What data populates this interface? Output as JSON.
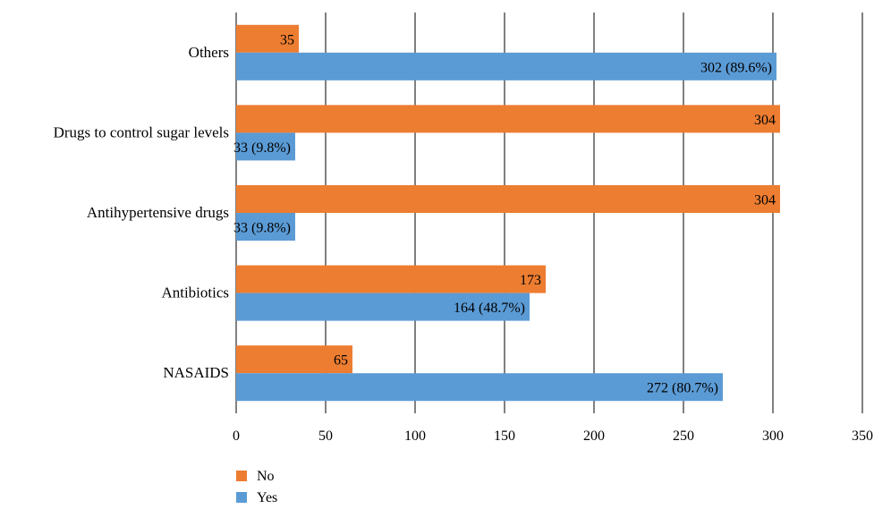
{
  "chart_data": {
    "type": "bar",
    "orientation": "horizontal",
    "categories": [
      "Others",
      "Drugs to control sugar levels",
      "Antihypertensive drugs",
      "Antibiotics",
      "NASAIDS"
    ],
    "series": [
      {
        "name": "No",
        "color": "#ED7D31",
        "values": [
          35,
          304,
          304,
          173,
          65
        ],
        "labels": [
          "35",
          "304",
          "304",
          "173",
          "65"
        ]
      },
      {
        "name": "Yes",
        "color": "#5B9BD5",
        "values": [
          302,
          33,
          33,
          164,
          272
        ],
        "labels": [
          "302 (89.6%)",
          "33 (9.8%)",
          "33 (9.8%)",
          "164 (48.7%)",
          "272 (80.7%)"
        ]
      }
    ],
    "xlim": [
      0,
      350
    ],
    "xticks": [
      "0",
      "50",
      "100",
      "150",
      "200",
      "250",
      "300",
      "350"
    ],
    "grid": true,
    "legend_position": "bottom-left"
  }
}
